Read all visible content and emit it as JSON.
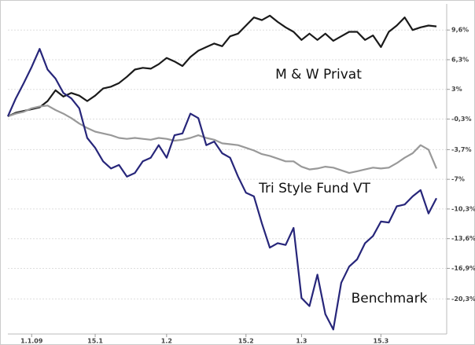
{
  "chart_data": {
    "type": "line",
    "categories": [
      null,
      null,
      null,
      "1.1.09",
      null,
      null,
      null,
      null,
      null,
      null,
      null,
      "15.1",
      null,
      null,
      null,
      null,
      null,
      null,
      null,
      null,
      "1.2",
      null,
      null,
      null,
      null,
      null,
      null,
      null,
      null,
      null,
      "15.2",
      null,
      null,
      null,
      null,
      null,
      null,
      "1.3",
      null,
      null,
      null,
      null,
      null,
      null,
      null,
      null,
      null,
      "15.3",
      null,
      null,
      null,
      null,
      null,
      null,
      null
    ],
    "series": [
      {
        "name": "M & W Privat",
        "color": "#1a1a1a",
        "values": [
          0,
          0.4,
          0.6,
          0.8,
          1.0,
          1.7,
          2.9,
          2.2,
          2.6,
          2.3,
          1.7,
          2.3,
          3.1,
          3.3,
          3.7,
          4.4,
          5.2,
          5.4,
          5.3,
          5.8,
          6.5,
          6.1,
          5.6,
          6.6,
          7.3,
          7.7,
          8.1,
          7.8,
          8.9,
          9.2,
          10.1,
          11.0,
          10.7,
          11.2,
          10.5,
          9.9,
          9.4,
          8.5,
          9.2,
          8.5,
          9.2,
          8.4,
          8.9,
          9.4,
          9.4,
          8.5,
          9.0,
          7.7,
          9.4,
          10.1,
          11.0,
          9.6,
          9.9,
          10.1,
          10.0
        ]
      },
      {
        "name": "Tri Style Fund VT",
        "color": "#999999",
        "values": [
          0,
          0.3,
          0.5,
          0.9,
          1.1,
          1.2,
          0.7,
          0.3,
          -0.2,
          -0.8,
          -1.3,
          -1.7,
          -1.9,
          -2.1,
          -2.4,
          -2.5,
          -2.4,
          -2.5,
          -2.6,
          -2.4,
          -2.5,
          -2.7,
          -2.6,
          -2.4,
          -2.1,
          -2.4,
          -2.6,
          -3.0,
          -3.1,
          -3.2,
          -3.5,
          -3.8,
          -4.2,
          -4.4,
          -4.7,
          -5.0,
          -5.0,
          -5.6,
          -5.9,
          -5.8,
          -5.6,
          -5.7,
          -6.0,
          -6.3,
          -6.1,
          -5.9,
          -5.7,
          -5.8,
          -5.7,
          -5.2,
          -4.6,
          -4.1,
          -3.2,
          -3.7,
          -5.8
        ]
      },
      {
        "name": "Benchmark",
        "color": "#27267a",
        "values": [
          0,
          2.0,
          3.7,
          5.5,
          7.5,
          5.2,
          4.2,
          2.6,
          2.0,
          0.9,
          -2.4,
          -3.5,
          -5.0,
          -5.8,
          -5.4,
          -6.7,
          -6.3,
          -5.0,
          -4.6,
          -3.2,
          -4.6,
          -2.1,
          -1.9,
          0.3,
          -0.2,
          -3.2,
          -2.8,
          -4.1,
          -4.6,
          -6.7,
          -8.5,
          -8.9,
          -11.9,
          -14.6,
          -14.1,
          -14.3,
          -12.4,
          -20.2,
          -21.1,
          -17.6,
          -22.0,
          -23.7,
          -18.5,
          -16.7,
          -15.9,
          -14.1,
          -13.3,
          -11.7,
          -11.8,
          -10.0,
          -9.8,
          -8.9,
          -8.2,
          -10.8,
          -9.1
        ]
      }
    ],
    "ylim": [
      -24.2,
      12.5
    ],
    "yticks": [
      {
        "value": 9.6,
        "label": "9,6%"
      },
      {
        "value": 6.3,
        "label": "6,3%"
      },
      {
        "value": 3,
        "label": "3%"
      },
      {
        "value": -0.3,
        "label": "-0,3%"
      },
      {
        "value": -3.7,
        "label": "-3,7%"
      },
      {
        "value": -7,
        "label": "-7%"
      },
      {
        "value": -10.3,
        "label": "-10,3%"
      },
      {
        "value": -13.6,
        "label": "-13,6%"
      },
      {
        "value": -16.9,
        "label": "-16,9%"
      },
      {
        "value": -20.3,
        "label": "-20,3%"
      }
    ],
    "grid": true
  }
}
